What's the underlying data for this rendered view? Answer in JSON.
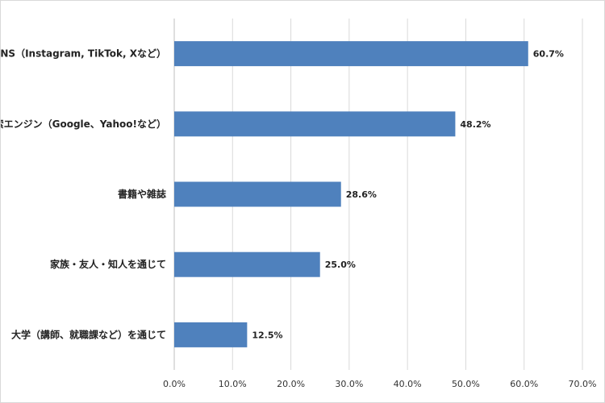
{
  "chart_data": {
    "type": "bar",
    "orientation": "horizontal",
    "title": "",
    "xlabel": "",
    "ylabel": "",
    "categories": [
      "SNS（Instagram, TikTok, Xなど）",
      "検索エンジン（Google、Yahoo!など）",
      "書籍や雑誌",
      "家族・友人・知人を通じて",
      "大学（講師、就職課など）を通じて"
    ],
    "values": [
      60.7,
      48.2,
      28.6,
      25.0,
      12.5
    ],
    "data_labels": [
      "60.7%",
      "48.2%",
      "28.6%",
      "25.0%",
      "12.5%"
    ],
    "xlim": [
      0,
      70
    ],
    "xticks": [
      0,
      10,
      20,
      30,
      40,
      50,
      60,
      70
    ],
    "xtick_labels": [
      "0.0%",
      "10.0%",
      "20.0%",
      "30.0%",
      "40.0%",
      "50.0%",
      "60.0%",
      "70.0%"
    ],
    "bar_color": "#4f81bd",
    "grid": true,
    "legend": "none"
  }
}
